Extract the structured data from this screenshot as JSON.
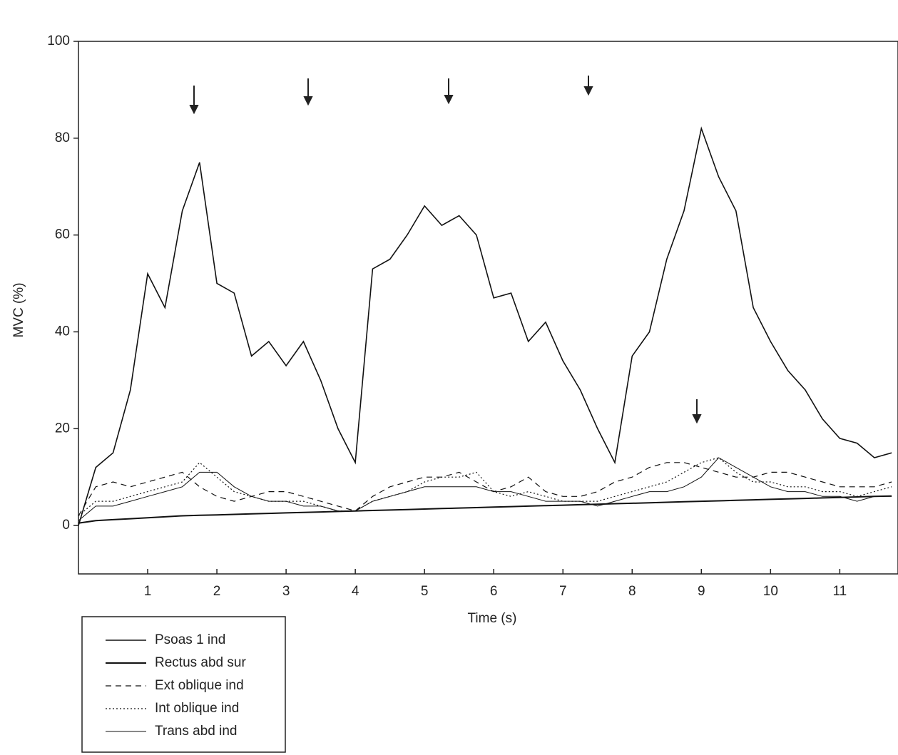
{
  "chart_data": {
    "type": "line",
    "x_label": "Time (s)",
    "y_label": "MVC (%)",
    "x": [
      0,
      0.25,
      0.5,
      0.75,
      1,
      1.25,
      1.5,
      1.75,
      2,
      2.25,
      2.5,
      2.75,
      3,
      3.25,
      3.5,
      3.75,
      4,
      4.25,
      4.5,
      4.75,
      5,
      5.25,
      5.5,
      5.75,
      6,
      6.25,
      6.5,
      6.75,
      7,
      7.25,
      7.5,
      7.75,
      8,
      8.25,
      8.5,
      8.75,
      9,
      9.25,
      9.5,
      9.75,
      10,
      10.25,
      10.5,
      10.75,
      11,
      11.25,
      11.5,
      11.75
    ],
    "xlim": [
      0,
      11.8
    ],
    "xticks": [
      1,
      2,
      3,
      4,
      5,
      6,
      7,
      8,
      9,
      10,
      11
    ],
    "ylim": [
      -10,
      100
    ],
    "yticks": [
      0,
      20,
      40,
      60,
      80,
      100
    ],
    "series": [
      {
        "name": "Psoas 1 ind",
        "color": "#111111",
        "dash": "solid",
        "width": 1.6,
        "values": [
          0,
          12,
          15,
          28,
          52,
          45,
          65,
          75,
          50,
          48,
          35,
          38,
          33,
          38,
          30,
          20,
          13,
          53,
          55,
          60,
          66,
          62,
          64,
          60,
          47,
          48,
          38,
          42,
          34,
          28,
          20,
          13,
          35,
          40,
          55,
          65,
          82,
          72,
          65,
          45,
          38,
          32,
          28,
          22,
          18,
          17,
          14,
          15
        ]
      },
      {
        "name": "Rectus abd sur",
        "color": "#111111",
        "dash": "solid",
        "width": 2,
        "values": [
          0.5,
          1,
          1.2,
          1.4,
          1.6,
          1.8,
          2,
          2.1,
          2.2,
          2.3,
          2.4,
          2.5,
          2.6,
          2.7,
          2.8,
          2.9,
          3,
          3.1,
          3.2,
          3.3,
          3.4,
          3.5,
          3.6,
          3.7,
          3.8,
          3.9,
          4,
          4.1,
          4.2,
          4.3,
          4.4,
          4.5,
          4.6,
          4.7,
          4.8,
          4.9,
          5,
          5.1,
          5.2,
          5.3,
          5.4,
          5.5,
          5.6,
          5.7,
          5.8,
          5.9,
          6,
          6.1
        ]
      },
      {
        "name": "Ext oblique ind",
        "color": "#111111",
        "dash": "dashed",
        "width": 1.2,
        "values": [
          2,
          8,
          9,
          8,
          9,
          10,
          11,
          8,
          6,
          5,
          6,
          7,
          7,
          6,
          5,
          4,
          3,
          6,
          8,
          9,
          10,
          10,
          11,
          9,
          7,
          8,
          10,
          7,
          6,
          6,
          7,
          9,
          10,
          12,
          13,
          13,
          12,
          11,
          10,
          10,
          11,
          11,
          10,
          9,
          8,
          8,
          8,
          9
        ]
      },
      {
        "name": "Int oblique ind",
        "color": "#111111",
        "dash": "dotted",
        "width": 1.2,
        "values": [
          2,
          5,
          5,
          6,
          7,
          8,
          9,
          13,
          10,
          7,
          6,
          5,
          5,
          5,
          4,
          3,
          3,
          5,
          6,
          7,
          9,
          10,
          10,
          11,
          7,
          6,
          7,
          6,
          5,
          5,
          5,
          6,
          7,
          8,
          9,
          11,
          13,
          14,
          11,
          9,
          9,
          8,
          8,
          7,
          7,
          6,
          7,
          8
        ]
      },
      {
        "name": "Trans abd ind",
        "color": "#111111",
        "dash": "solid",
        "width": 1,
        "values": [
          1,
          4,
          4,
          5,
          6,
          7,
          8,
          11,
          11,
          8,
          6,
          5,
          5,
          4,
          4,
          3,
          3,
          5,
          6,
          7,
          8,
          8,
          8,
          8,
          7,
          7,
          6,
          5,
          5,
          5,
          4,
          5,
          6,
          7,
          7,
          8,
          10,
          14,
          12,
          10,
          8,
          7,
          7,
          6,
          6,
          5,
          6,
          6
        ]
      }
    ]
  }
}
